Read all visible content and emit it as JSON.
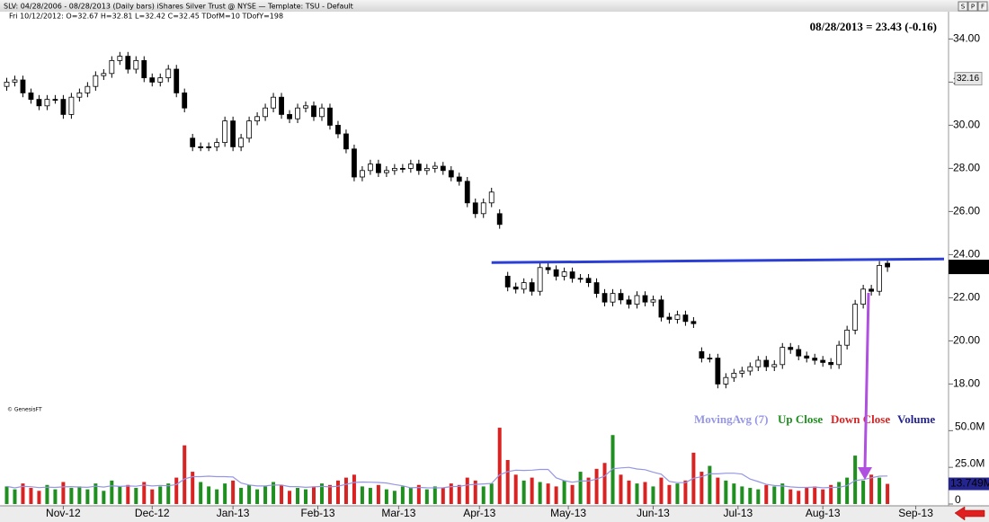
{
  "chart_data": {
    "type": "candlestick",
    "header": "SLV: 04/28/2006 - 08/28/2013  (Daily bars)   iShares Silver Trust @ NYSE  —  Template: TSU - Default",
    "header_detail": "Fri   10/12/2012:  O=32.67  H=32.81  L=32.42  C=32.45   TDofM=10   TDofY=198",
    "title": "08/28/2013 = 23.43 (-0.16)",
    "credit": "© GenesisFT",
    "buttons": [
      "S",
      "P",
      "F"
    ],
    "candle_color": "#000000",
    "xlim": [
      -0.5,
      116
    ],
    "xticks": [
      {
        "value": 7,
        "label": "Nov-12"
      },
      {
        "value": 18,
        "label": "Dec-12"
      },
      {
        "value": 28,
        "label": "Jan-13"
      },
      {
        "value": 38.5,
        "label": "Feb-13"
      },
      {
        "value": 48.5,
        "label": "Mar-13"
      },
      {
        "value": 58.5,
        "label": "Apr-13"
      },
      {
        "value": 69.5,
        "label": "May-13"
      },
      {
        "value": 80,
        "label": "Jun-13"
      },
      {
        "value": 90.5,
        "label": "Jul-13"
      },
      {
        "value": 101,
        "label": "Aug-13"
      },
      {
        "value": 112.5,
        "label": "Sep-13"
      }
    ],
    "ylim": [
      16.6,
      35.6
    ],
    "yticks": [
      {
        "value": 18,
        "label": "18.00"
      },
      {
        "value": 20,
        "label": "20.00"
      },
      {
        "value": 22,
        "label": "22.00"
      },
      {
        "value": 24,
        "label": "24.00"
      },
      {
        "value": 26,
        "label": "26.00"
      },
      {
        "value": 28,
        "label": "28.00"
      },
      {
        "value": 30,
        "label": "30.00"
      },
      {
        "value": 32,
        "label": "32.00"
      },
      {
        "value": 34,
        "label": "34.00"
      }
    ],
    "marker": 32.16,
    "y2lim": [
      0,
      60
    ],
    "y2ticks": [
      0,
      {
        "value": 25,
        "label": "25.0M"
      },
      {
        "value": 50,
        "label": "50.0M"
      }
    ],
    "open": [
      31.8,
      32.0,
      32.1,
      31.5,
      31.2,
      30.9,
      31.2,
      31.2,
      30.5,
      31.3,
      31.5,
      31.8,
      32.3,
      32.4,
      33.0,
      33.2,
      32.6,
      33.0,
      32.2,
      32.0,
      32.2,
      32.6,
      31.5,
      29.4,
      29.0,
      29.0,
      29.0,
      29.2,
      30.2,
      29.0,
      29.4,
      30.2,
      30.4,
      30.8,
      31.3,
      30.5,
      30.3,
      30.8,
      30.9,
      30.4,
      30.8,
      30.0,
      29.6,
      28.9,
      27.6,
      27.9,
      28.2,
      27.8,
      27.9,
      28.0,
      28.0,
      28.2,
      27.9,
      28.0,
      28.1,
      27.9,
      27.6,
      27.4,
      26.4,
      25.9,
      26.4,
      25.9,
      23.0,
      22.5,
      22.4,
      22.7,
      22.3,
      23.4,
      23.3,
      23.0,
      23.2,
      22.9,
      22.9,
      22.7,
      22.2,
      21.8,
      22.2,
      21.9,
      21.7,
      22.1,
      21.8,
      21.9,
      21.1,
      21.0,
      21.2,
      20.9,
      19.5,
      19.2,
      19.2,
      18.0,
      18.3,
      18.5,
      18.6,
      18.8,
      19.1,
      18.8,
      18.9,
      19.7,
      19.6,
      19.3,
      19.2,
      19.1,
      19.0,
      18.9,
      19.8,
      20.5,
      21.7,
      22.4,
      22.3,
      23.6
    ],
    "high": [
      32.2,
      32.3,
      32.3,
      31.7,
      31.4,
      31.4,
      31.4,
      31.4,
      31.5,
      31.7,
      32.0,
      32.5,
      32.6,
      33.2,
      33.4,
      33.4,
      33.2,
      33.2,
      32.4,
      32.4,
      32.8,
      32.8,
      31.7,
      29.6,
      29.2,
      29.2,
      29.4,
      30.4,
      30.4,
      29.6,
      30.4,
      30.6,
      31.0,
      31.5,
      31.5,
      30.7,
      31.0,
      31.1,
      31.1,
      31.0,
      31.0,
      30.2,
      29.8,
      29.1,
      28.1,
      28.4,
      28.4,
      28.1,
      28.2,
      28.2,
      28.4,
      28.4,
      28.2,
      28.3,
      28.3,
      28.1,
      27.8,
      27.6,
      26.6,
      26.6,
      27.1,
      26.1,
      23.2,
      22.7,
      22.9,
      22.9,
      23.6,
      23.6,
      23.5,
      23.4,
      23.4,
      23.1,
      23.1,
      22.9,
      22.4,
      22.4,
      22.4,
      22.1,
      22.3,
      22.3,
      22.1,
      22.1,
      21.3,
      21.4,
      21.4,
      21.1,
      19.7,
      19.4,
      19.4,
      18.5,
      18.7,
      18.8,
      19.0,
      19.3,
      19.3,
      19.1,
      19.9,
      19.9,
      19.8,
      19.5,
      19.4,
      19.3,
      19.2,
      20.0,
      20.7,
      21.9,
      22.6,
      22.6,
      23.7,
      23.8
    ],
    "low": [
      31.6,
      31.8,
      31.3,
      31.0,
      30.7,
      30.7,
      31.0,
      30.3,
      30.3,
      31.1,
      31.3,
      31.6,
      32.1,
      32.2,
      32.8,
      32.4,
      32.4,
      32.0,
      31.8,
      31.8,
      32.0,
      31.3,
      30.6,
      28.8,
      28.8,
      28.8,
      28.8,
      29.0,
      28.8,
      28.8,
      29.2,
      30.0,
      30.2,
      30.6,
      30.3,
      30.1,
      30.1,
      30.6,
      30.2,
      30.2,
      29.8,
      29.4,
      28.7,
      27.4,
      27.4,
      27.7,
      27.6,
      27.6,
      27.7,
      27.8,
      27.8,
      27.7,
      27.7,
      27.8,
      27.7,
      27.4,
      27.2,
      26.2,
      25.7,
      25.7,
      26.2,
      25.2,
      22.3,
      22.2,
      22.2,
      22.1,
      22.1,
      23.1,
      22.8,
      22.8,
      22.7,
      22.7,
      22.5,
      22.0,
      21.6,
      21.6,
      21.7,
      21.5,
      21.5,
      21.6,
      21.6,
      20.9,
      20.8,
      20.8,
      20.7,
      20.6,
      19.0,
      19.0,
      17.8,
      17.8,
      18.1,
      18.3,
      18.4,
      18.6,
      18.6,
      18.6,
      18.7,
      19.4,
      19.1,
      19.0,
      18.9,
      18.8,
      18.7,
      18.7,
      19.6,
      20.3,
      21.5,
      22.1,
      22.1,
      23.2
    ],
    "close": [
      32.0,
      32.1,
      31.5,
      31.2,
      30.9,
      31.2,
      31.2,
      30.5,
      31.3,
      31.5,
      31.8,
      32.3,
      32.4,
      33.0,
      33.2,
      32.6,
      33.0,
      32.2,
      32.0,
      32.2,
      32.6,
      31.5,
      30.8,
      29.0,
      29.0,
      29.0,
      29.2,
      30.2,
      29.0,
      29.4,
      30.2,
      30.4,
      30.8,
      31.3,
      30.5,
      30.3,
      30.8,
      30.9,
      30.4,
      30.8,
      30.0,
      29.6,
      28.9,
      27.6,
      27.9,
      28.2,
      27.8,
      27.9,
      28.0,
      28.0,
      28.2,
      27.9,
      28.0,
      28.1,
      27.9,
      27.6,
      27.4,
      26.4,
      25.9,
      26.4,
      26.9,
      25.4,
      22.5,
      22.4,
      22.7,
      22.3,
      23.4,
      23.3,
      23.0,
      23.2,
      22.9,
      22.9,
      22.7,
      22.2,
      21.8,
      22.2,
      21.9,
      21.7,
      22.1,
      21.8,
      21.9,
      21.1,
      21.0,
      21.2,
      20.9,
      20.8,
      19.2,
      19.2,
      18.0,
      18.3,
      18.5,
      18.6,
      18.8,
      19.1,
      18.8,
      18.9,
      19.7,
      19.6,
      19.3,
      19.2,
      19.1,
      19.0,
      18.9,
      19.8,
      20.5,
      21.7,
      22.4,
      22.3,
      23.5,
      23.43
    ],
    "trendline": {
      "x": [
        60,
        116
      ],
      "y": [
        23.63,
        23.8
      ],
      "color": "#2b3fd6"
    },
    "volume": {
      "name": "Volume",
      "color": "#25258f",
      "axis": "y2",
      "up": {
        "name": "Up Close",
        "color": "#1f8f1f"
      },
      "down": {
        "name": "Down Close",
        "color": "#d92323"
      },
      "last_value_label": "13.749M",
      "values": [
        12,
        10,
        14,
        11,
        9,
        13,
        10,
        15,
        11,
        12,
        10,
        14,
        9,
        16,
        12,
        13,
        11,
        15,
        10,
        12,
        14,
        18,
        40,
        22,
        15,
        12,
        10,
        14,
        16,
        11,
        13,
        10,
        12,
        15,
        13,
        9,
        11,
        10,
        12,
        14,
        13,
        16,
        18,
        20,
        12,
        11,
        13,
        10,
        9,
        12,
        11,
        13,
        10,
        12,
        11,
        14,
        13,
        18,
        16,
        12,
        14,
        52,
        30,
        20,
        16,
        18,
        15,
        14,
        12,
        16,
        13,
        22,
        18,
        24,
        28,
        47,
        20,
        16,
        14,
        15,
        12,
        18,
        13,
        14,
        16,
        35,
        22,
        26,
        18,
        16,
        14,
        12,
        11,
        10,
        13,
        12,
        14,
        10,
        9,
        11,
        12,
        10,
        13,
        15,
        18,
        33,
        16,
        20,
        18,
        13.749
      ],
      "moving_avg": {
        "name": "MovingAvg (7)",
        "color": "#9696e6",
        "values": [
          12,
          11,
          12,
          11.8,
          11.2,
          11.5,
          11.3,
          11.7,
          11.9,
          11.6,
          11.4,
          12.1,
          11.6,
          12.4,
          12,
          12.3,
          12.1,
          12.9,
          12.3,
          12.7,
          12.4,
          13.3,
          17.1,
          18.7,
          18.7,
          19,
          18.7,
          18.7,
          18.4,
          14.3,
          13,
          12.3,
          12.3,
          13,
          12.9,
          11.9,
          11.9,
          11.4,
          11.7,
          12,
          11.7,
          12.1,
          13.4,
          14.7,
          15,
          14.9,
          14.7,
          14.3,
          13.3,
          12.4,
          11.1,
          11.3,
          11.1,
          11,
          11.1,
          11.9,
          12,
          13,
          13.4,
          13.7,
          14,
          19.9,
          22.1,
          23.1,
          22.9,
          23.1,
          23.6,
          23.6,
          17.9,
          15.9,
          14.9,
          15.7,
          15.7,
          17,
          19,
          24,
          24.6,
          25,
          23.9,
          23.4,
          21.7,
          20.3,
          15.4,
          14.6,
          14.6,
          17.6,
          18.6,
          20.6,
          20.6,
          21,
          21,
          20.4,
          17,
          15.3,
          13.4,
          12.6,
          12.3,
          11.7,
          11.3,
          11.3,
          11.6,
          11.1,
          11.3,
          11.4,
          12.6,
          16,
          16.7,
          17.9,
          19,
          19.1
        ]
      }
    }
  }
}
